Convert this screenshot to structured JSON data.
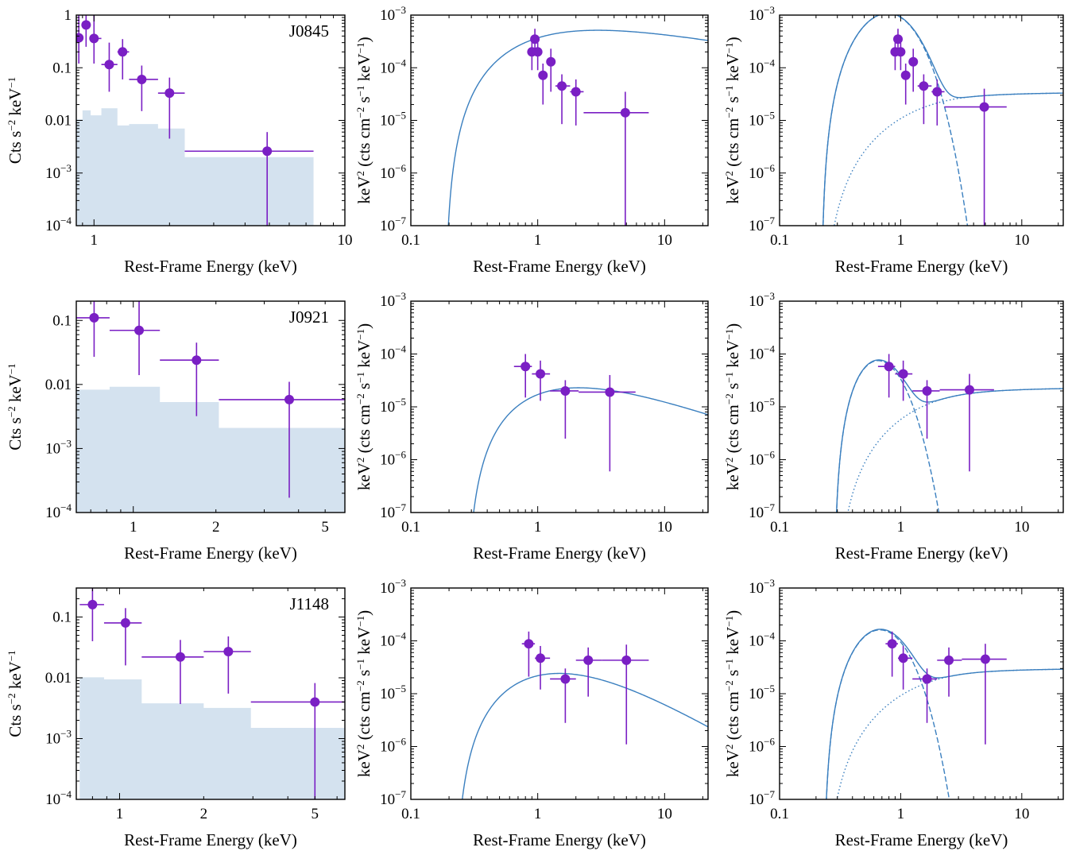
{
  "axis_text": {
    "xlabel": "Rest-Frame Energy (keV)",
    "ylabel_counts": "Cts s⁻² keV⁻¹",
    "ylabel_flux": "keV² (cts cm⁻² s⁻¹ keV⁻¹)"
  },
  "colors": {
    "data": "#7a1fc4",
    "model": "#3a7fbf",
    "background": "#d4e2ef"
  },
  "chart_data": [
    {
      "type": "scatter",
      "panel": "counts",
      "label": "J0845",
      "xscale": "log",
      "yscale": "log",
      "xlim": [
        0.85,
        10
      ],
      "ylim": [
        0.0001,
        1
      ],
      "xticks": [
        1,
        10
      ],
      "xticklabels": [
        "1",
        "10"
      ],
      "yticklabels": [
        "10⁻⁴",
        "10⁻³",
        "0.01",
        "0.1",
        "1"
      ],
      "xlabel": "Rest-Frame Energy (keV)",
      "ylabel": "Cts s⁻² keV⁻¹",
      "series": [
        {
          "x": [
            0.87,
            0.93,
            1.0,
            1.15,
            1.3,
            1.55,
            2.0,
            4.9
          ],
          "y": [
            0.37,
            0.65,
            0.36,
            0.115,
            0.2,
            0.06,
            0.033,
            0.0026
          ],
          "xerr": [
            [
              0.85,
              0.9
            ],
            [
              0.9,
              0.97
            ],
            [
              0.97,
              1.07
            ],
            [
              1.07,
              1.24
            ],
            [
              1.24,
              1.38
            ],
            [
              1.38,
              1.8
            ],
            [
              1.8,
              2.3
            ],
            [
              2.3,
              7.5
            ]
          ],
          "yerr": [
            [
              0.12,
              1
            ],
            [
              0.25,
              1
            ],
            [
              0.12,
              1
            ],
            [
              0.035,
              0.3
            ],
            [
              0.06,
              0.35
            ],
            [
              0.015,
              0.11
            ],
            [
              0.0045,
              0.065
            ],
            [
              0.0001,
              0.006
            ]
          ]
        }
      ],
      "background": {
        "edges": [
          0.85,
          0.9,
          0.97,
          1.07,
          1.24,
          1.38,
          1.8,
          2.3,
          7.5
        ],
        "values": [
          0.0105,
          0.0155,
          0.0125,
          0.017,
          0.008,
          0.0085,
          0.007,
          0.002
        ]
      }
    },
    {
      "type": "scatter",
      "panel": "model",
      "model": "single",
      "label": "",
      "xscale": "log",
      "yscale": "log",
      "xlim": [
        0.1,
        22
      ],
      "ylim": [
        1e-07,
        0.001
      ],
      "xticks": [
        0.1,
        1,
        10
      ],
      "xticklabels": [
        "0.1",
        "1",
        "10"
      ],
      "yticklabels": [
        "10⁻⁷",
        "10⁻⁶",
        "10⁻⁵",
        "10⁻⁴",
        "10⁻³"
      ],
      "xlabel": "Rest-Frame Energy (keV)",
      "ylabel": "keV² (cts cm⁻² s⁻¹ keV⁻¹)",
      "series": [
        {
          "x": [
            0.9,
            0.95,
            1.0,
            1.1,
            1.27,
            1.55,
            2.0,
            4.9
          ],
          "y": [
            0.0002,
            0.00035,
            0.0002,
            7.2e-05,
            0.00013,
            4.5e-05,
            3.5e-05,
            1.4e-05
          ],
          "xerr": [
            [
              0.85,
              0.93
            ],
            [
              0.9,
              1.0
            ],
            [
              0.97,
              1.05
            ],
            [
              1.03,
              1.18
            ],
            [
              1.18,
              1.38
            ],
            [
              1.38,
              1.8
            ],
            [
              1.8,
              2.3
            ],
            [
              2.3,
              7.5
            ]
          ],
          "yerr": [
            [
              9e-05,
              0.00035
            ],
            [
              0.0002,
              0.00055
            ],
            [
              9e-05,
              0.0003
            ],
            [
              2e-05,
              0.00012
            ],
            [
              3.5e-05,
              0.00023
            ],
            [
              8.5e-06,
              7.5e-05
            ],
            [
              8e-06,
              6e-05
            ],
            [
              1e-07,
              3.5e-05
            ]
          ]
        }
      ],
      "model_params": {
        "N": 0.0006,
        "E0": 0.185,
        "Ep": 0.5,
        "g": 1.4
      }
    },
    {
      "type": "scatter",
      "panel": "model",
      "model": "two-component",
      "label": "",
      "xscale": "log",
      "yscale": "log",
      "xlim": [
        0.1,
        22
      ],
      "ylim": [
        1e-07,
        0.001
      ],
      "xticks": [
        0.1,
        1,
        10
      ],
      "xticklabels": [
        "0.1",
        "1",
        "10"
      ],
      "yticklabels": [
        "10⁻⁷",
        "10⁻⁶",
        "10⁻⁵",
        "10⁻⁴",
        "10⁻³"
      ],
      "xlabel": "Rest-Frame Energy (keV)",
      "ylabel": "keV² (cts cm⁻² s⁻¹ keV⁻¹)",
      "series": [
        {
          "x": [
            0.9,
            0.95,
            1.0,
            1.1,
            1.27,
            1.55,
            2.0,
            4.9
          ],
          "y": [
            0.0002,
            0.00035,
            0.0002,
            7.2e-05,
            0.00013,
            4.5e-05,
            3.5e-05,
            1.8e-05
          ],
          "xerr": [
            [
              0.85,
              0.93
            ],
            [
              0.9,
              1.0
            ],
            [
              0.97,
              1.05
            ],
            [
              1.03,
              1.18
            ],
            [
              1.18,
              1.38
            ],
            [
              1.38,
              1.8
            ],
            [
              1.8,
              2.3
            ],
            [
              2.3,
              7.5
            ]
          ],
          "yerr": [
            [
              9e-05,
              0.00035
            ],
            [
              0.0002,
              0.00055
            ],
            [
              9e-05,
              0.0003
            ],
            [
              2e-05,
              0.00012
            ],
            [
              3.5e-05,
              0.00023
            ],
            [
              8.5e-06,
              7.5e-05
            ],
            [
              8e-06,
              6e-05
            ],
            [
              1e-07,
              4e-05
            ]
          ]
        }
      ],
      "model_params": {
        "T": 0.19,
        "Nt": 0.00077,
        "Ep": 0.55,
        "P": 3.4e-05,
        "E0": 0.22
      }
    },
    {
      "type": "scatter",
      "panel": "counts",
      "label": "J0921",
      "xscale": "log",
      "yscale": "log",
      "xlim": [
        0.62,
        5.9
      ],
      "ylim": [
        0.0001,
        0.2
      ],
      "xticks": [
        1,
        2,
        5
      ],
      "xticklabels": [
        "1",
        "2",
        "5"
      ],
      "yticklabels": [
        "10⁻⁴",
        "10⁻³",
        "0.01",
        "0.1"
      ],
      "xlabel": "Rest-Frame Energy (keV)",
      "ylabel": "Cts s⁻² keV⁻¹",
      "series": [
        {
          "x": [
            0.72,
            1.05,
            1.7,
            3.7
          ],
          "y": [
            0.11,
            0.07,
            0.024,
            0.0058
          ],
          "xerr": [
            [
              0.62,
              0.82
            ],
            [
              0.82,
              1.25
            ],
            [
              1.25,
              2.05
            ],
            [
              2.05,
              5.9
            ]
          ],
          "yerr": [
            [
              0.027,
              0.2
            ],
            [
              0.014,
              0.2
            ],
            [
              0.0032,
              0.045
            ],
            [
              0.00017,
              0.011
            ]
          ]
        }
      ],
      "background": {
        "edges": [
          0.62,
          0.82,
          1.25,
          2.05,
          5.9
        ],
        "values": [
          0.0083,
          0.0092,
          0.0053,
          0.0021
        ]
      }
    },
    {
      "type": "scatter",
      "panel": "model",
      "model": "single",
      "label": "",
      "xscale": "log",
      "yscale": "log",
      "xlim": [
        0.1,
        22
      ],
      "ylim": [
        1e-07,
        0.001
      ],
      "xticks": [
        0.1,
        1,
        10
      ],
      "xticklabels": [
        "0.1",
        "1",
        "10"
      ],
      "yticklabels": [
        "10⁻⁷",
        "10⁻⁶",
        "10⁻⁵",
        "10⁻⁴",
        "10⁻³"
      ],
      "xlabel": "Rest-Frame Energy (keV)",
      "ylabel": "keV² (cts cm⁻² s⁻¹ keV⁻¹)",
      "series": [
        {
          "x": [
            0.8,
            1.05,
            1.65,
            3.7
          ],
          "y": [
            5.8e-05,
            4.2e-05,
            2e-05,
            1.9e-05
          ],
          "xerr": [
            [
              0.65,
              0.9
            ],
            [
              0.9,
              1.25
            ],
            [
              1.25,
              2.1
            ],
            [
              2.1,
              5.9
            ]
          ],
          "yerr": [
            [
              1.5e-05,
              0.0001
            ],
            [
              1.3e-05,
              7.5e-05
            ],
            [
              2.5e-06,
              3.2e-05
            ],
            [
              6e-07,
              4e-05
            ]
          ]
        }
      ],
      "model_params": {
        "N": 4.5e-05,
        "E0": 0.27,
        "Ep": 0.55,
        "g": 1.82
      }
    },
    {
      "type": "scatter",
      "panel": "model",
      "model": "two-component",
      "label": "",
      "xscale": "log",
      "yscale": "log",
      "xlim": [
        0.1,
        22
      ],
      "ylim": [
        1e-07,
        0.001
      ],
      "xticks": [
        0.1,
        1,
        10
      ],
      "xticklabels": [
        "0.1",
        "1",
        "10"
      ],
      "yticklabels": [
        "10⁻⁷",
        "10⁻⁶",
        "10⁻⁵",
        "10⁻⁴",
        "10⁻³"
      ],
      "xlabel": "Rest-Frame Energy (keV)",
      "ylabel": "keV² (cts cm⁻² s⁻¹ keV⁻¹)",
      "series": [
        {
          "x": [
            0.8,
            1.05,
            1.65,
            3.7
          ],
          "y": [
            5.8e-05,
            4.2e-05,
            2e-05,
            2.1e-05
          ],
          "xerr": [
            [
              0.65,
              0.9
            ],
            [
              0.9,
              1.25
            ],
            [
              1.25,
              2.1
            ],
            [
              2.1,
              5.9
            ]
          ],
          "yerr": [
            [
              1.5e-05,
              0.0001
            ],
            [
              1.3e-05,
              7.5e-05
            ],
            [
              2.5e-06,
              3.2e-05
            ],
            [
              6e-07,
              4.2e-05
            ]
          ]
        }
      ],
      "model_params": {
        "T": 0.125,
        "Nt": 7.5e-05,
        "Ep": 0.65,
        "P": 2.3e-05,
        "E0": 0.28
      }
    },
    {
      "type": "scatter",
      "panel": "counts",
      "label": "J1148",
      "xscale": "log",
      "yscale": "log",
      "xlim": [
        0.7,
        6.4
      ],
      "ylim": [
        0.0001,
        0.3
      ],
      "xticks": [
        1,
        2,
        5
      ],
      "xticklabels": [
        "1",
        "2",
        "5"
      ],
      "yticklabels": [
        "10⁻⁴",
        "10⁻³",
        "0.01",
        "0.1"
      ],
      "xlabel": "Rest-Frame Energy (keV)",
      "ylabel": "Cts s⁻² keV⁻¹",
      "series": [
        {
          "x": [
            0.8,
            1.05,
            1.65,
            2.45,
            5.0
          ],
          "y": [
            0.16,
            0.08,
            0.022,
            0.027,
            0.004
          ],
          "xerr": [
            [
              0.72,
              0.88
            ],
            [
              0.88,
              1.2
            ],
            [
              1.2,
              2.0
            ],
            [
              2.0,
              2.95
            ],
            [
              2.95,
              6.4
            ]
          ],
          "yerr": [
            [
              0.04,
              0.3
            ],
            [
              0.016,
              0.14
            ],
            [
              0.0037,
              0.042
            ],
            [
              0.0055,
              0.048
            ],
            [
              0.0001,
              0.0082
            ]
          ]
        }
      ],
      "background": {
        "edges": [
          0.72,
          0.88,
          1.2,
          2.0,
          2.95,
          6.4
        ],
        "values": [
          0.0102,
          0.0094,
          0.0038,
          0.0032,
          0.0015
        ]
      }
    },
    {
      "type": "scatter",
      "panel": "model",
      "model": "single",
      "label": "",
      "xscale": "log",
      "yscale": "log",
      "xlim": [
        0.1,
        22
      ],
      "ylim": [
        1e-07,
        0.001
      ],
      "xticks": [
        0.1,
        1,
        10
      ],
      "xticklabels": [
        "0.1",
        "1",
        "10"
      ],
      "yticklabels": [
        "10⁻⁷",
        "10⁻⁶",
        "10⁻⁵",
        "10⁻⁴",
        "10⁻³"
      ],
      "xlabel": "Rest-Frame Energy (keV)",
      "ylabel": "keV² (cts cm⁻² s⁻¹ keV⁻¹)",
      "series": [
        {
          "x": [
            0.85,
            1.05,
            1.65,
            2.5,
            5.0
          ],
          "y": [
            8.8e-05,
            4.7e-05,
            1.9e-05,
            4.3e-05,
            4.3e-05
          ],
          "xerr": [
            [
              0.75,
              0.95
            ],
            [
              0.95,
              1.25
            ],
            [
              1.25,
              2.0
            ],
            [
              2.0,
              3.2
            ],
            [
              3.2,
              7.5
            ]
          ],
          "yerr": [
            [
              2.1e-05,
              0.00015
            ],
            [
              1.2e-05,
              8e-05
            ],
            [
              2.8e-06,
              3e-05
            ],
            [
              8.8e-06,
              7.5e-05
            ],
            [
              1.1e-06,
              8.5e-05
            ]
          ]
        }
      ],
      "model_params": {
        "N": 4.8e-05,
        "E0": 0.22,
        "Ep": 0.85,
        "g": 2.4
      }
    },
    {
      "type": "scatter",
      "panel": "model",
      "model": "two-component",
      "label": "",
      "xscale": "log",
      "yscale": "log",
      "xlim": [
        0.1,
        22
      ],
      "ylim": [
        1e-07,
        0.001
      ],
      "xticks": [
        0.1,
        1,
        10
      ],
      "xticklabels": [
        "0.1",
        "1",
        "10"
      ],
      "yticklabels": [
        "10⁻⁷",
        "10⁻⁶",
        "10⁻⁵",
        "10⁻⁴",
        "10⁻³"
      ],
      "xlabel": "Rest-Frame Energy (keV)",
      "ylabel": "keV² (cts cm⁻² s⁻¹ keV⁻¹)",
      "series": [
        {
          "x": [
            0.85,
            1.05,
            1.65,
            2.5,
            5.0
          ],
          "y": [
            8.8e-05,
            4.7e-05,
            1.9e-05,
            4.3e-05,
            4.5e-05
          ],
          "xerr": [
            [
              0.75,
              0.95
            ],
            [
              0.95,
              1.25
            ],
            [
              1.25,
              2.0
            ],
            [
              2.0,
              3.2
            ],
            [
              3.2,
              7.5
            ]
          ],
          "yerr": [
            [
              2.1e-05,
              0.00015
            ],
            [
              1.2e-05,
              8e-05
            ],
            [
              2.8e-06,
              3e-05
            ],
            [
              8.8e-06,
              7.5e-05
            ],
            [
              1.1e-06,
              8.8e-05
            ]
          ]
        }
      ],
      "model_params": {
        "T": 0.15,
        "Nt": 0.00014,
        "Ep": 0.55,
        "P": 3e-05,
        "E0": 0.23
      }
    }
  ]
}
